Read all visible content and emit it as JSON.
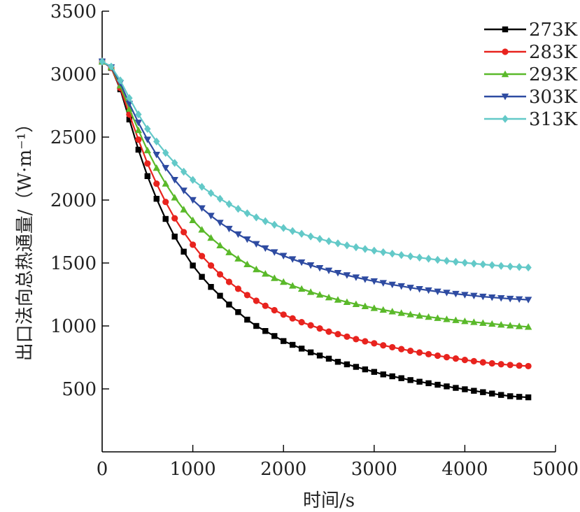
{
  "chart_data": {
    "type": "line",
    "xlabel": "时间/s",
    "ylabel": "出口法向总热通量/（W·m⁻¹）",
    "xlim": [
      0,
      5000
    ],
    "ylim": [
      0,
      3500
    ],
    "xticks": [
      0,
      1000,
      2000,
      3000,
      4000,
      5000
    ],
    "yticks": [
      500,
      1000,
      1500,
      2000,
      2500,
      3000,
      3500
    ],
    "grid": false,
    "legend_position": "top-right",
    "x": [
      0,
      100,
      200,
      300,
      400,
      500,
      600,
      700,
      800,
      900,
      1000,
      1100,
      1200,
      1300,
      1400,
      1500,
      1600,
      1700,
      1800,
      1900,
      2000,
      2100,
      2200,
      2300,
      2400,
      2500,
      2600,
      2700,
      2800,
      2900,
      3000,
      3100,
      3200,
      3300,
      3400,
      3500,
      3600,
      3700,
      3800,
      3900,
      4000,
      4100,
      4200,
      4300,
      4400,
      4500,
      4600,
      4700
    ],
    "series": [
      {
        "name": "273K",
        "color": "#000000",
        "marker": "square",
        "values": [
          3100,
          3050,
          2880,
          2640,
          2400,
          2190,
          2010,
          1850,
          1710,
          1590,
          1480,
          1390,
          1310,
          1240,
          1170,
          1110,
          1050,
          1000,
          960,
          920,
          880,
          850,
          820,
          790,
          765,
          740,
          715,
          695,
          675,
          655,
          635,
          615,
          600,
          585,
          570,
          557,
          545,
          533,
          520,
          508,
          497,
          485,
          474,
          463,
          452,
          442,
          437,
          433
        ]
      },
      {
        "name": "283K",
        "color": "#e8231e",
        "marker": "circle",
        "values": [
          3100,
          3050,
          2890,
          2680,
          2480,
          2290,
          2130,
          1985,
          1855,
          1745,
          1645,
          1555,
          1480,
          1410,
          1350,
          1295,
          1245,
          1200,
          1160,
          1125,
          1090,
          1060,
          1030,
          1005,
          980,
          955,
          935,
          915,
          895,
          878,
          862,
          846,
          831,
          816,
          802,
          789,
          776,
          764,
          752,
          741,
          730,
          720,
          711,
          703,
          696,
          690,
          685,
          681
        ]
      },
      {
        "name": "293K",
        "color": "#5ab92a",
        "marker": "triangle-up",
        "values": [
          3100,
          3055,
          2910,
          2725,
          2555,
          2395,
          2255,
          2130,
          2020,
          1925,
          1840,
          1765,
          1700,
          1640,
          1585,
          1535,
          1490,
          1450,
          1415,
          1380,
          1350,
          1320,
          1295,
          1270,
          1248,
          1227,
          1208,
          1190,
          1173,
          1157,
          1142,
          1128,
          1115,
          1103,
          1092,
          1082,
          1072,
          1063,
          1054,
          1046,
          1038,
          1031,
          1024,
          1017,
          1010,
          1004,
          998,
          993
        ]
      },
      {
        "name": "303K",
        "color": "#2e4ba1",
        "marker": "triangle-down",
        "values": [
          3100,
          3055,
          2930,
          2765,
          2615,
          2480,
          2360,
          2255,
          2160,
          2075,
          2000,
          1935,
          1875,
          1820,
          1772,
          1728,
          1688,
          1651,
          1617,
          1586,
          1557,
          1530,
          1505,
          1482,
          1460,
          1440,
          1421,
          1403,
          1386,
          1370,
          1355,
          1341,
          1328,
          1316,
          1304,
          1293,
          1283,
          1273,
          1264,
          1255,
          1247,
          1240,
          1233,
          1227,
          1221,
          1216,
          1212,
          1208
        ]
      },
      {
        "name": "313K",
        "color": "#63c9c8",
        "marker": "diamond",
        "values": [
          3100,
          3060,
          2950,
          2810,
          2680,
          2565,
          2465,
          2375,
          2295,
          2225,
          2160,
          2105,
          2055,
          2010,
          1968,
          1930,
          1895,
          1862,
          1832,
          1804,
          1778,
          1754,
          1732,
          1711,
          1691,
          1673,
          1656,
          1640,
          1625,
          1611,
          1598,
          1586,
          1574,
          1563,
          1553,
          1543,
          1534,
          1525,
          1517,
          1509,
          1502,
          1495,
          1489,
          1483,
          1477,
          1472,
          1468,
          1464
        ]
      }
    ]
  }
}
